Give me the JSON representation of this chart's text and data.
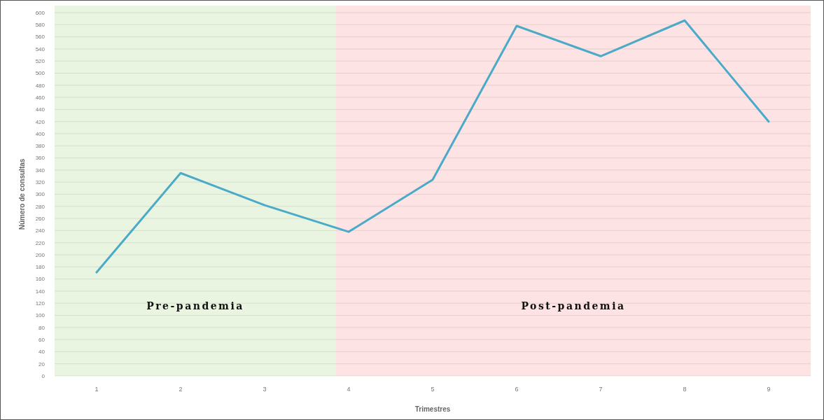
{
  "chart_data": {
    "type": "line",
    "xlabel": "Trimestres",
    "ylabel": "Número de consultas",
    "x": [
      1,
      2,
      3,
      4,
      5,
      6,
      7,
      8,
      9
    ],
    "xlim": [
      0.5,
      9.5
    ],
    "xticks": [
      1,
      2,
      3,
      4,
      5,
      6,
      7,
      8,
      9
    ],
    "ylim": [
      0,
      600
    ],
    "yticks": [
      0,
      20,
      40,
      60,
      80,
      100,
      120,
      140,
      160,
      180,
      200,
      220,
      240,
      260,
      280,
      300,
      320,
      340,
      360,
      380,
      400,
      420,
      440,
      460,
      480,
      500,
      520,
      540,
      560,
      580,
      600
    ],
    "series": [
      {
        "color": "#4aaac8",
        "values": [
          171,
          335,
          282,
          238,
          324,
          578,
          528,
          587,
          420
        ]
      }
    ],
    "bands": [
      {
        "axis": "x",
        "from": 0.5,
        "to": 3.85,
        "label": "Pre-pandemia",
        "color": "#e9f5e1"
      },
      {
        "axis": "x",
        "from": 3.85,
        "to": 9.5,
        "label": "Post-pandemia",
        "color": "#fde3e3"
      }
    ],
    "grid": "y",
    "marker": "none",
    "line_style": "solid"
  }
}
